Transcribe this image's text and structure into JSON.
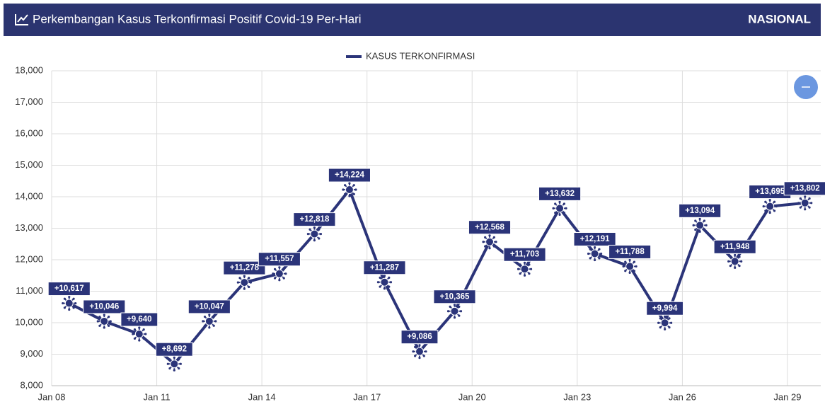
{
  "header": {
    "title": "Perkembangan Kasus Terkonfirmasi Positif Covid-19 Per-Hari",
    "region": "NASIONAL"
  },
  "chart_data": {
    "type": "line",
    "series": [
      {
        "name": "KASUS TERKONFIRMASI",
        "color": "#2b3479",
        "values": [
          10617,
          10046,
          9640,
          8692,
          10047,
          11278,
          11557,
          12818,
          14224,
          11287,
          9086,
          10365,
          12568,
          11703,
          13632,
          12191,
          11788,
          9994,
          13094,
          11948,
          13695,
          13802
        ],
        "value_labels": [
          "+10,617",
          "+10,046",
          "+9,640",
          "+8,692",
          "+10,047",
          "+11,278",
          "+11,557",
          "+12,818",
          "+14,224",
          "+11,287",
          "+9,086",
          "+10,365",
          "+12,568",
          "+11,703",
          "+13,632",
          "+12,191",
          "+11,788",
          "+9,994",
          "+13,094",
          "+11,948",
          "+13,695",
          "+13,802"
        ]
      }
    ],
    "x": [
      8.5,
      9.5,
      10.5,
      11.5,
      12.5,
      13.5,
      14.5,
      15.5,
      16.5,
      17.5,
      18.5,
      19.5,
      20.5,
      21.5,
      22.5,
      23.5,
      24.5,
      25.5,
      26.5,
      27.5,
      28.5,
      29.5
    ],
    "xlim": [
      8,
      29.95
    ],
    "xticks": [
      {
        "value": 8,
        "label": "Jan 08"
      },
      {
        "value": 11,
        "label": "Jan 11"
      },
      {
        "value": 14,
        "label": "Jan 14"
      },
      {
        "value": 17,
        "label": "Jan 17"
      },
      {
        "value": 20,
        "label": "Jan 20"
      },
      {
        "value": 23,
        "label": "Jan 23"
      },
      {
        "value": 26,
        "label": "Jan 26"
      },
      {
        "value": 29,
        "label": "Jan 29"
      }
    ],
    "ylim": [
      8000,
      18000
    ],
    "yticks": [
      {
        "value": 8000,
        "label": "8,000"
      },
      {
        "value": 9000,
        "label": "9,000"
      },
      {
        "value": 10000,
        "label": "10,000"
      },
      {
        "value": 11000,
        "label": "11,000"
      },
      {
        "value": 12000,
        "label": "12,000"
      },
      {
        "value": 13000,
        "label": "13,000"
      },
      {
        "value": 14000,
        "label": "14,000"
      },
      {
        "value": 15000,
        "label": "15,000"
      },
      {
        "value": 16000,
        "label": "16,000"
      },
      {
        "value": 17000,
        "label": "17,000"
      },
      {
        "value": 18000,
        "label": "18,000"
      }
    ],
    "grid": true,
    "legend": "top"
  }
}
